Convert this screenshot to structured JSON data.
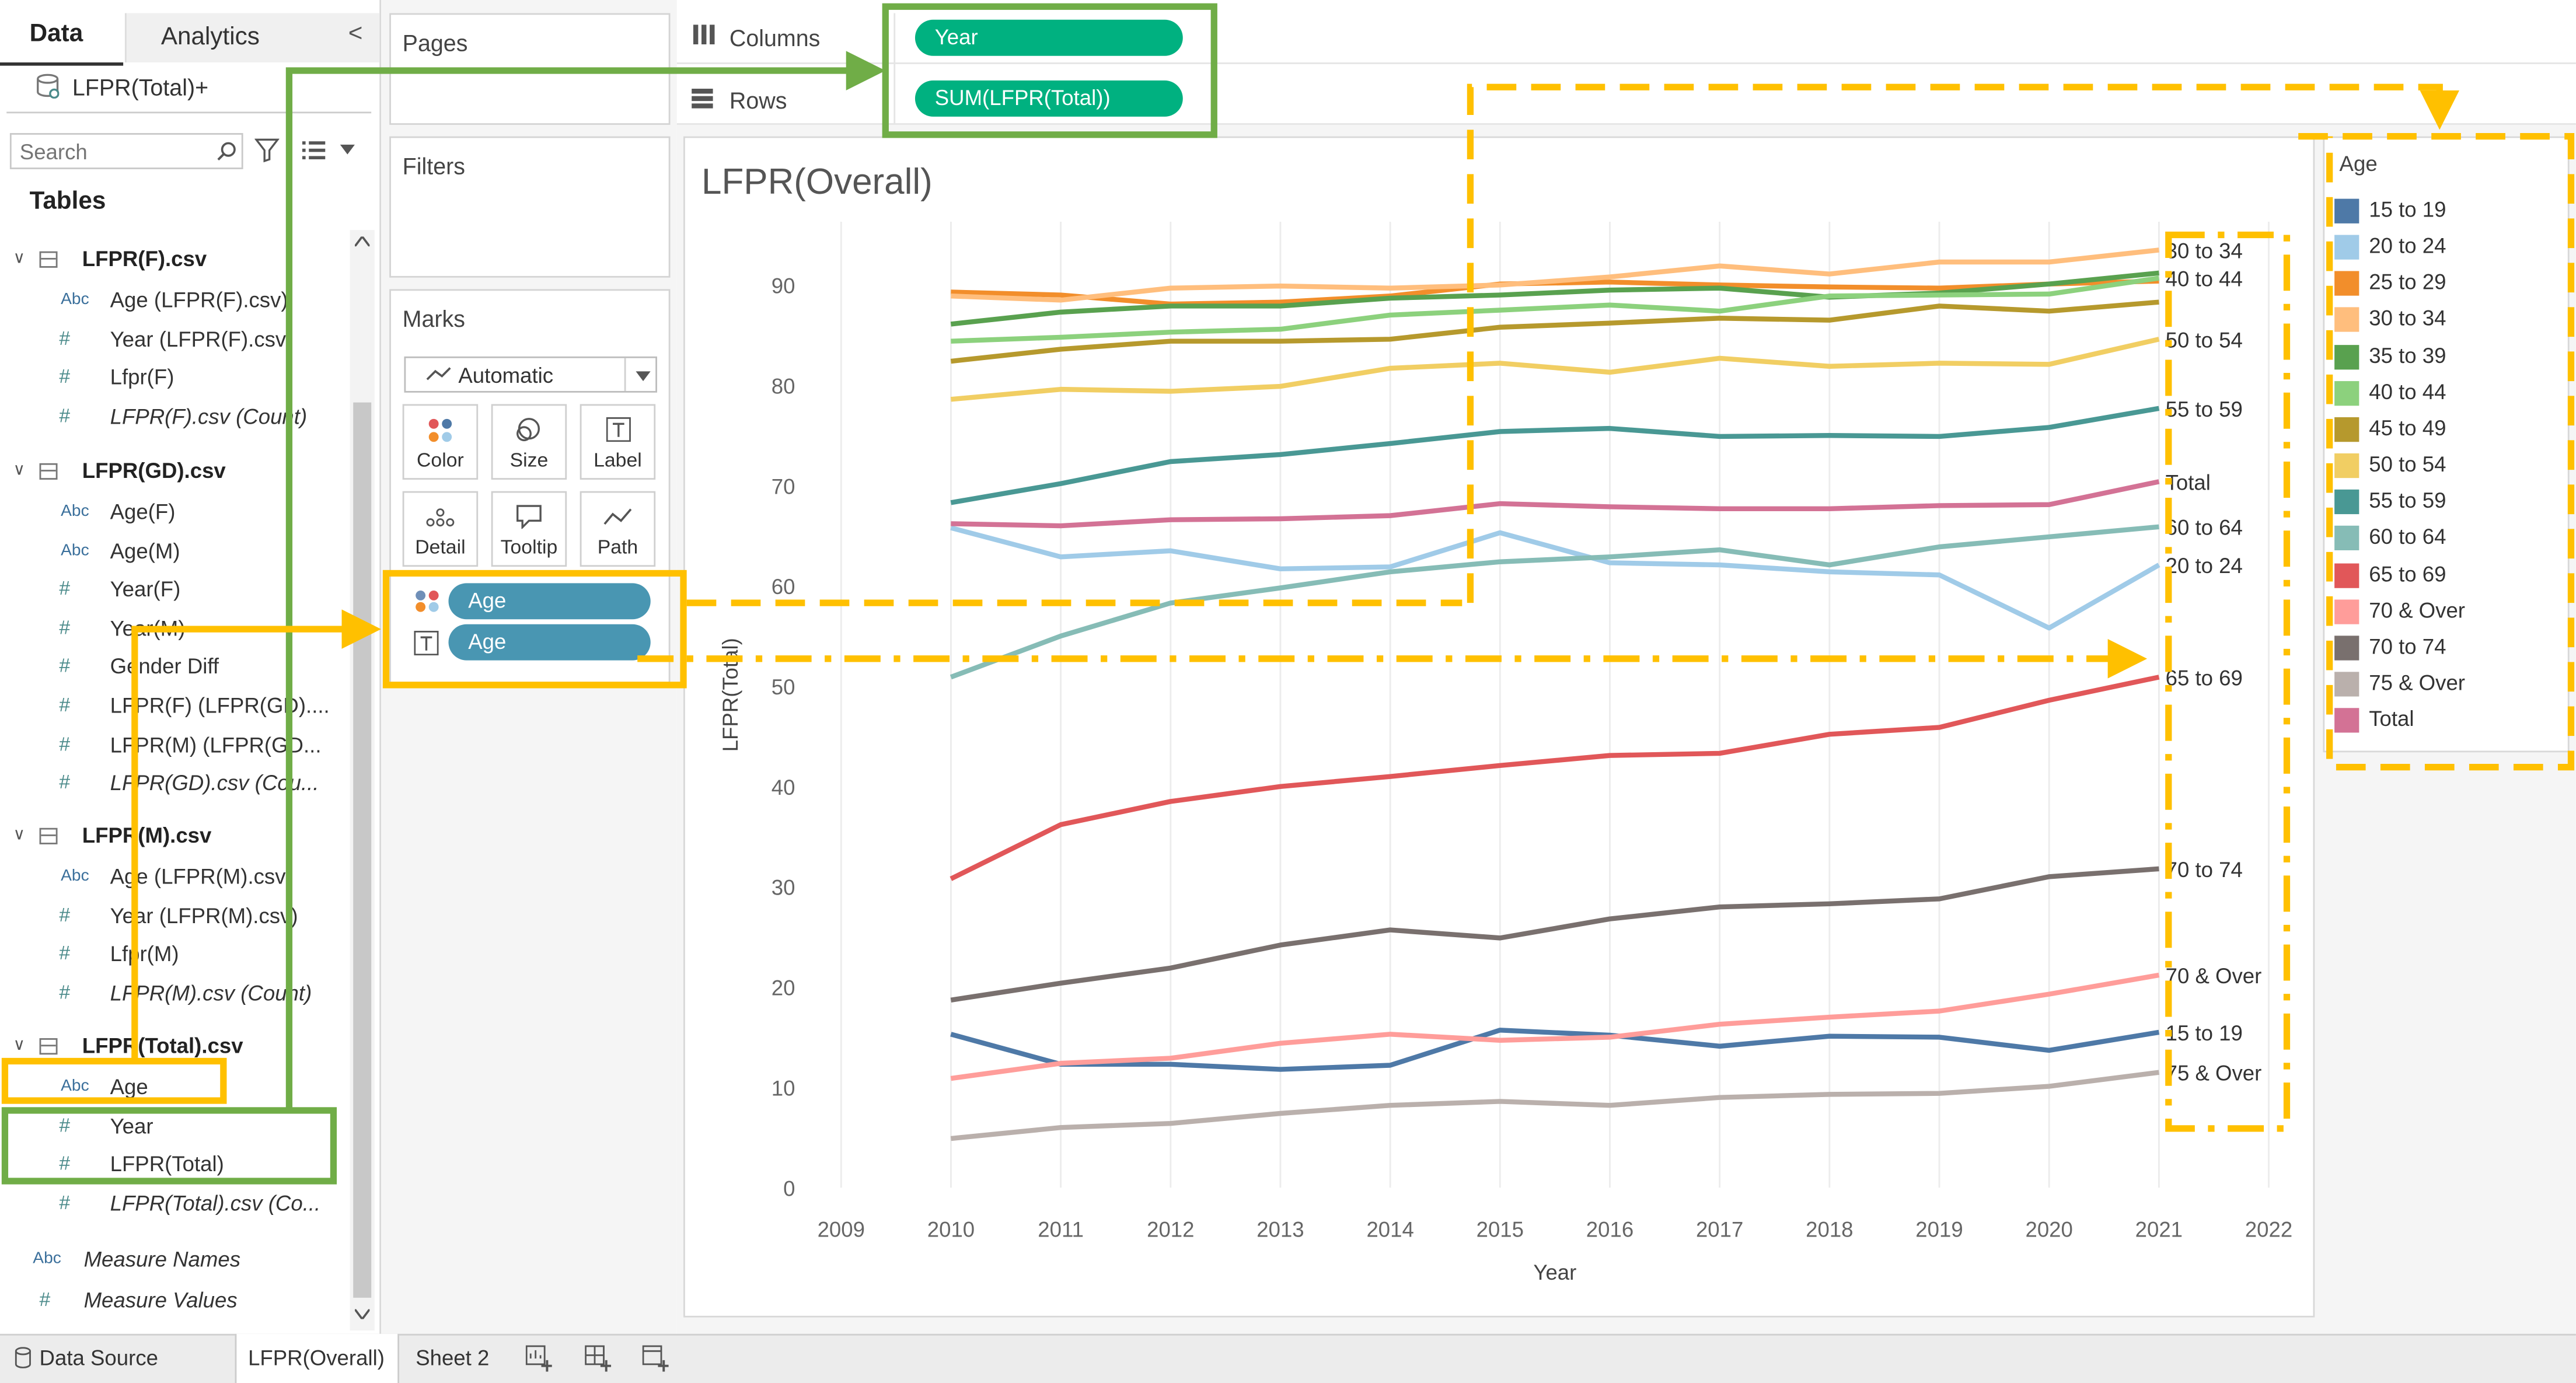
{
  "left_panel": {
    "tab_data": "Data",
    "tab_analytics": "Analytics",
    "collapse_glyph": "<",
    "datasource": "LFPR(Total)+",
    "search_placeholder": "Search",
    "tables_heading": "Tables",
    "tables": [
      {
        "name": "LFPR(F).csv",
        "fields": [
          {
            "type": "Abc",
            "label": "Age (LFPR(F).csv)"
          },
          {
            "type": "#",
            "label": "Year (LFPR(F).csv)"
          },
          {
            "type": "#",
            "label": "Lfpr(F)"
          },
          {
            "type": "#",
            "label": "LFPR(F).csv (Count)",
            "italic": true
          }
        ]
      },
      {
        "name": "LFPR(GD).csv",
        "fields": [
          {
            "type": "Abc",
            "label": "Age(F)"
          },
          {
            "type": "Abc",
            "label": "Age(M)"
          },
          {
            "type": "#",
            "label": "Year(F)"
          },
          {
            "type": "#",
            "label": "Year(M)"
          },
          {
            "type": "#",
            "label": "Gender Diff"
          },
          {
            "type": "#",
            "label": "LFPR(F) (LFPR(GD)...."
          },
          {
            "type": "#",
            "label": "LFPR(M) (LFPR(GD..."
          },
          {
            "type": "#",
            "label": "LFPR(GD).csv (Cou...",
            "italic": true
          }
        ]
      },
      {
        "name": "LFPR(M).csv",
        "fields": [
          {
            "type": "Abc",
            "label": "Age (LFPR(M).csv)"
          },
          {
            "type": "#",
            "label": "Year (LFPR(M).csv)"
          },
          {
            "type": "#",
            "label": "Lfpr(M)"
          },
          {
            "type": "#",
            "label": "LFPR(M).csv (Count)",
            "italic": true
          }
        ]
      },
      {
        "name": "LFPR(Total).csv",
        "fields": [
          {
            "type": "Abc",
            "label": "Age"
          },
          {
            "type": "#",
            "label": "Year"
          },
          {
            "type": "#",
            "label": "LFPR(Total)"
          },
          {
            "type": "#",
            "label": "LFPR(Total).csv (Co...",
            "italic": true
          }
        ]
      }
    ],
    "measure_names": "Measure Names",
    "measure_values": "Measure Values"
  },
  "cards": {
    "pages": "Pages",
    "filters": "Filters",
    "marks": "Marks",
    "mark_type": "Automatic",
    "mark_buttons": [
      "Color",
      "Size",
      "Label",
      "Detail",
      "Tooltip",
      "Path"
    ],
    "marks_pills": [
      "Age",
      "Age"
    ]
  },
  "shelves": {
    "columns_label": "Columns",
    "rows_label": "Rows",
    "columns_pill": "Year",
    "rows_pill": "SUM(LFPR(Total))"
  },
  "colors": {
    "dimension_pill": "#4996b2",
    "measure_pill": "#00b180",
    "annotation_green": "#70ad47",
    "annotation_yellow": "#ffc000"
  },
  "worksheet_title": "LFPR(Overall)",
  "chart_data": {
    "type": "line",
    "xlabel": "Year",
    "ylabel": "LFPR(Total)",
    "xlim": [
      2009,
      2022
    ],
    "ylim": [
      0,
      95
    ],
    "x_ticks": [
      2009,
      2010,
      2011,
      2012,
      2013,
      2014,
      2015,
      2016,
      2017,
      2018,
      2019,
      2020,
      2021,
      2022
    ],
    "y_ticks": [
      0,
      10,
      20,
      30,
      40,
      50,
      60,
      70,
      80,
      90
    ],
    "x": [
      2010,
      2011,
      2012,
      2013,
      2014,
      2015,
      2016,
      2017,
      2018,
      2019,
      2020,
      2021
    ],
    "gridlines": "vertical",
    "legend_title": "Age",
    "legend_position": "right",
    "series": [
      {
        "name": "15 to 19",
        "color": "#4e79a7",
        "values": [
          15.3,
          12.3,
          12.3,
          11.8,
          12.2,
          15.7,
          15.2,
          14.1,
          15.1,
          15.0,
          13.7,
          15.5
        ]
      },
      {
        "name": "20 to 24",
        "color": "#a0cbe8",
        "values": [
          65.8,
          62.9,
          63.5,
          61.7,
          61.9,
          65.3,
          62.3,
          62.1,
          61.4,
          61.1,
          55.8,
          62.1
        ]
      },
      {
        "name": "25 to 29",
        "color": "#f28e2b",
        "values": [
          89.3,
          89.0,
          88.1,
          88.3,
          88.9,
          90.1,
          90.3,
          90.0,
          89.8,
          89.7,
          90.1,
          90.4
        ]
      },
      {
        "name": "30 to 34",
        "color": "#ffbe7d",
        "values": [
          88.9,
          88.5,
          89.7,
          89.9,
          89.7,
          90.0,
          90.8,
          91.9,
          91.1,
          92.3,
          92.3,
          93.5
        ]
      },
      {
        "name": "35 to 39",
        "color": "#59a14f",
        "values": [
          86.1,
          87.3,
          87.9,
          87.9,
          88.7,
          89.0,
          89.5,
          89.7,
          88.8,
          89.2,
          90.1,
          91.2
        ]
      },
      {
        "name": "40 to 44",
        "color": "#8cd17d",
        "values": [
          84.4,
          84.8,
          85.3,
          85.6,
          87.0,
          87.5,
          88.0,
          87.4,
          88.9,
          89.0,
          89.1,
          90.7
        ]
      },
      {
        "name": "45 to 49",
        "color": "#b6992d",
        "values": [
          82.4,
          83.6,
          84.4,
          84.4,
          84.6,
          85.8,
          86.2,
          86.7,
          86.5,
          87.9,
          87.4,
          88.3
        ]
      },
      {
        "name": "50 to 54",
        "color": "#f1ce63",
        "values": [
          78.6,
          79.6,
          79.4,
          79.9,
          81.7,
          82.2,
          81.3,
          82.7,
          81.9,
          82.2,
          82.1,
          84.6
        ]
      },
      {
        "name": "55 to 59",
        "color": "#499894",
        "values": [
          68.3,
          70.2,
          72.4,
          73.1,
          74.2,
          75.4,
          75.7,
          74.9,
          75.0,
          74.9,
          75.8,
          77.7
        ]
      },
      {
        "name": "60 to 64",
        "color": "#86bcb6",
        "values": [
          50.9,
          55.0,
          58.3,
          59.8,
          61.4,
          62.4,
          62.9,
          63.6,
          62.1,
          63.9,
          64.9,
          65.9
        ]
      },
      {
        "name": "65 to 69",
        "color": "#e15759",
        "values": [
          30.8,
          36.2,
          38.5,
          40.0,
          41.0,
          42.1,
          43.1,
          43.3,
          45.2,
          45.9,
          48.6,
          50.9
        ]
      },
      {
        "name": "70 & Over",
        "color": "#ff9d9a",
        "values": [
          10.9,
          12.4,
          12.9,
          14.4,
          15.3,
          14.7,
          15.0,
          16.3,
          17.0,
          17.6,
          19.3,
          21.2
        ]
      },
      {
        "name": "70 to 74",
        "color": "#79706e",
        "values": [
          18.7,
          20.4,
          21.9,
          24.2,
          25.7,
          24.9,
          26.8,
          28.0,
          28.3,
          28.8,
          31.0,
          31.8
        ]
      },
      {
        "name": "75 & Over",
        "color": "#bab0ac",
        "values": [
          4.9,
          6.0,
          6.4,
          7.4,
          8.2,
          8.6,
          8.2,
          9.0,
          9.3,
          9.4,
          10.1,
          11.5
        ]
      },
      {
        "name": "Total",
        "color": "#d37295",
        "values": [
          66.2,
          66.0,
          66.6,
          66.7,
          67.0,
          68.2,
          67.9,
          67.7,
          67.7,
          68.0,
          68.1,
          70.4
        ]
      }
    ],
    "end_labels": [
      {
        "text": "30 to 34",
        "value": 93.5
      },
      {
        "text": "40 to 44",
        "value": 90.7
      },
      {
        "text": "50 to 54",
        "value": 84.6
      },
      {
        "text": "55 to 59",
        "value": 77.7
      },
      {
        "text": "Total",
        "value": 70.4
      },
      {
        "text": "60 to 64",
        "value": 65.9
      },
      {
        "text": "20 to 24",
        "value": 62.1
      },
      {
        "text": "65 to 69",
        "value": 50.9
      },
      {
        "text": "70 to 74",
        "value": 31.8
      },
      {
        "text": "70 & Over",
        "value": 21.2
      },
      {
        "text": "15 to 19",
        "value": 15.5
      },
      {
        "text": "75 & Over",
        "value": 11.5
      }
    ]
  },
  "bottom_tabs": {
    "data_source": "Data Source",
    "sheets": [
      "LFPR(Overall)",
      "Sheet 2"
    ]
  }
}
